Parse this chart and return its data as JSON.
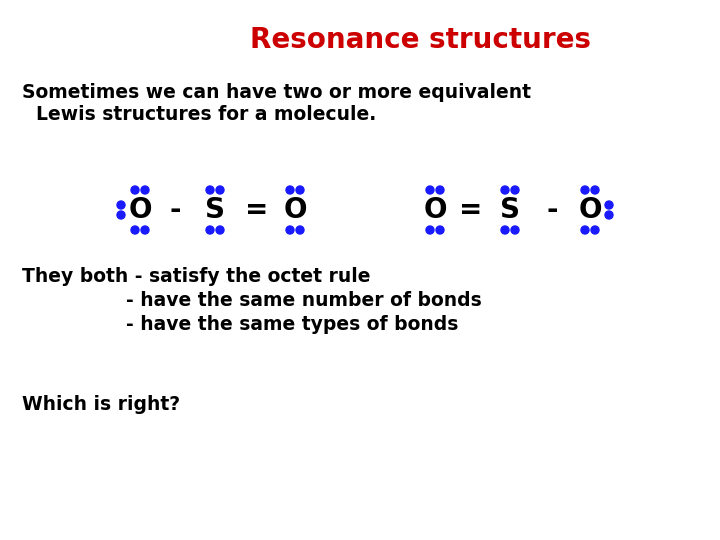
{
  "title": "Resonance structures",
  "title_color": "#cc0000",
  "title_fontsize": 20,
  "bg_color": "#ffffff",
  "body_color": "#000000",
  "dot_color": "#1a1aff",
  "text1_line1": "Sometimes we can have two or more equivalent",
  "text1_line2": "Lewis structures for a molecule.",
  "text2_line1": "They both - satisfy the octet rule",
  "text2_line2": "                - have the same number of bonds",
  "text2_line3": "                - have the same types of bonds",
  "text3": "Which is right?",
  "body_fontsize": 13.5,
  "struct_fontsize": 20
}
